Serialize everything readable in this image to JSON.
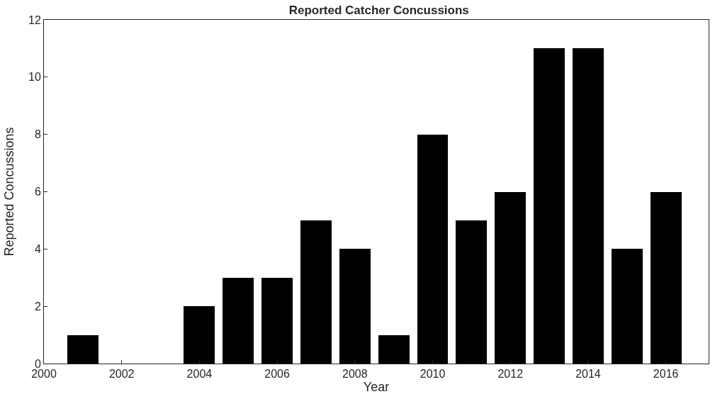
{
  "chart_data": {
    "type": "bar",
    "title": "Reported Catcher Concussions",
    "xlabel": "Year",
    "ylabel": "Reported Concussions",
    "x": [
      2001,
      2002,
      2003,
      2004,
      2005,
      2006,
      2007,
      2008,
      2009,
      2010,
      2011,
      2012,
      2013,
      2014,
      2015,
      2016
    ],
    "values": [
      1,
      0,
      0,
      2,
      3,
      3,
      5,
      4,
      1,
      8,
      5,
      6,
      11,
      11,
      4,
      6
    ],
    "color": "#000000",
    "xlim": [
      2000,
      2017.1
    ],
    "xticks": [
      2000,
      2002,
      2004,
      2006,
      2008,
      2010,
      2012,
      2014,
      2016
    ],
    "ylim": [
      0,
      12
    ],
    "yticks": [
      0,
      2,
      4,
      6,
      8,
      10,
      12
    ]
  }
}
